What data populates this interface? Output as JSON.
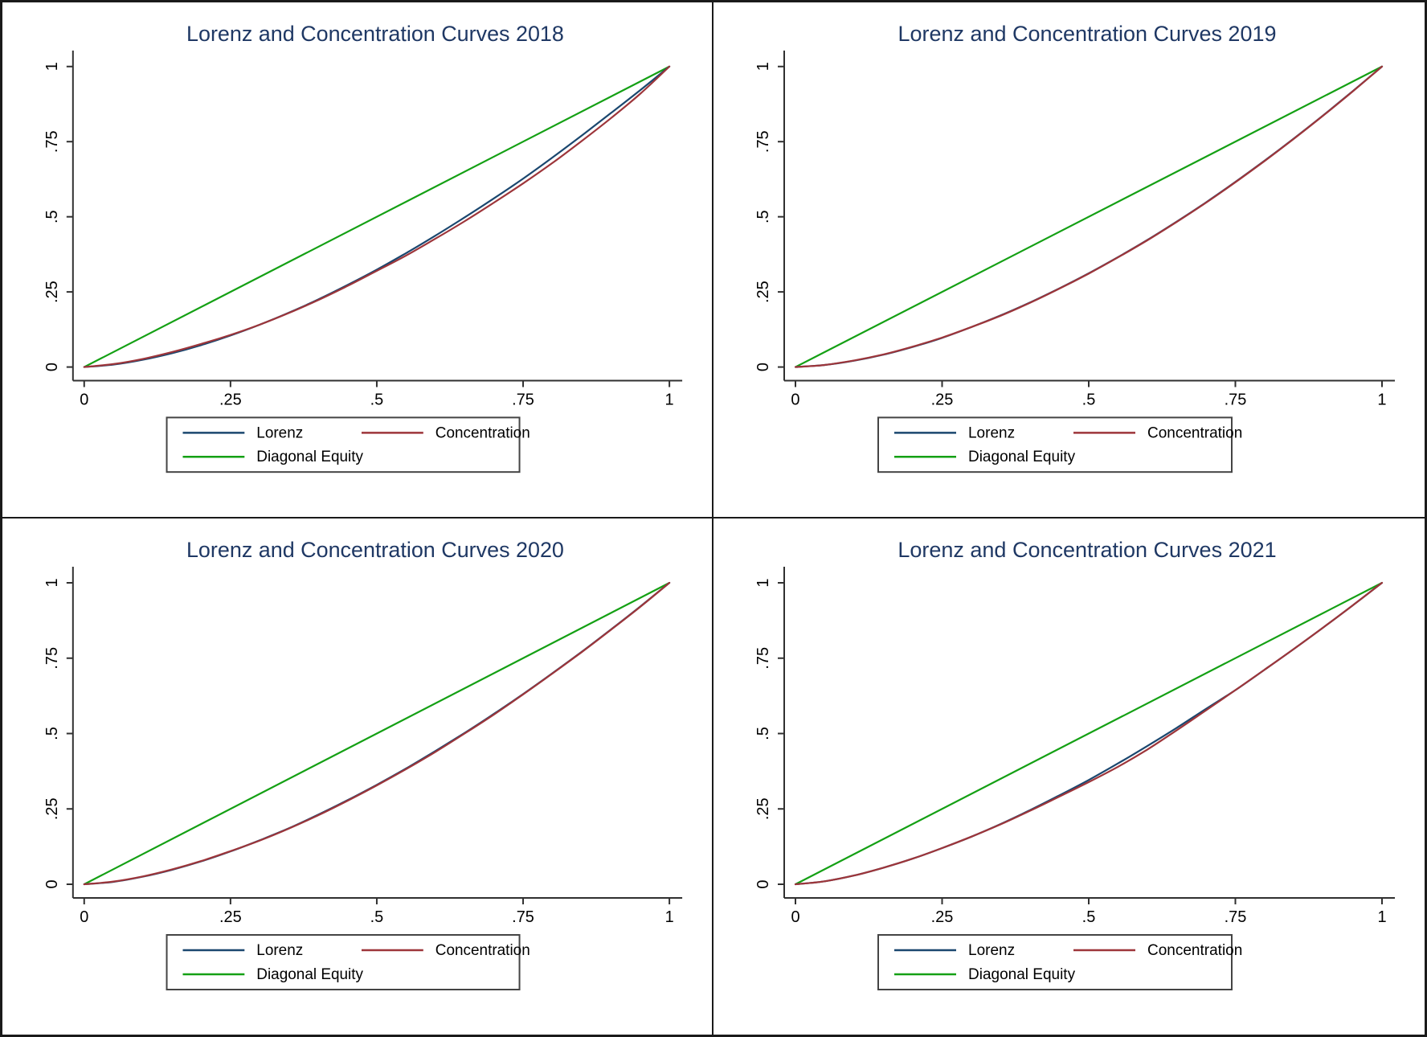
{
  "figure": {
    "background": "#ffffff",
    "border_color": "#1a1a1a",
    "axis_color": "#303030",
    "tick_label_color": "#000000",
    "title_color": "#1f3864"
  },
  "legend": {
    "position": "below-plot, boxed, two columns",
    "entries": [
      {
        "label": "Lorenz",
        "color": "#1a476f"
      },
      {
        "label": "Concentration",
        "color": "#9d353a"
      },
      {
        "label": "Diagonal Equity",
        "color": "#14a014"
      }
    ]
  },
  "chart_data": [
    {
      "type": "line",
      "title": "Lorenz and Concentration Curves 2018",
      "xlabel": "",
      "ylabel": "",
      "xlim": [
        0,
        1
      ],
      "ylim": [
        0,
        1
      ],
      "grid": false,
      "x_ticks": [
        0,
        0.25,
        0.5,
        0.75,
        1
      ],
      "y_ticks": [
        0,
        0.25,
        0.5,
        0.75,
        1
      ],
      "x_tick_labels": [
        "0",
        ".25",
        ".5",
        ".75",
        "1"
      ],
      "y_tick_labels": [
        "0",
        ".25",
        ".5",
        ".75",
        "1"
      ],
      "x": [
        0,
        0.05,
        0.1,
        0.15,
        0.2,
        0.25,
        0.3,
        0.35,
        0.4,
        0.45,
        0.5,
        0.55,
        0.6,
        0.65,
        0.7,
        0.75,
        0.8,
        0.85,
        0.9,
        0.95,
        1
      ],
      "series": [
        {
          "name": "Diagonal Equity",
          "color": "#14a014",
          "x": [
            0,
            1
          ],
          "y": [
            0,
            1
          ]
        },
        {
          "name": "Lorenz",
          "color": "#1a476f",
          "y": [
            0,
            0.008,
            0.024,
            0.046,
            0.073,
            0.105,
            0.141,
            0.181,
            0.225,
            0.273,
            0.324,
            0.379,
            0.437,
            0.498,
            0.561,
            0.627,
            0.697,
            0.77,
            0.845,
            0.921,
            1
          ]
        },
        {
          "name": "Concentration",
          "color": "#9d353a",
          "y": [
            0,
            0.01,
            0.027,
            0.05,
            0.077,
            0.107,
            0.141,
            0.18,
            0.223,
            0.27,
            0.32,
            0.371,
            0.427,
            0.485,
            0.547,
            0.611,
            0.679,
            0.752,
            0.828,
            0.909,
            1
          ]
        }
      ]
    },
    {
      "type": "line",
      "title": "Lorenz and Concentration Curves 2019",
      "xlabel": "",
      "ylabel": "",
      "xlim": [
        0,
        1
      ],
      "ylim": [
        0,
        1
      ],
      "grid": false,
      "x_ticks": [
        0,
        0.25,
        0.5,
        0.75,
        1
      ],
      "y_ticks": [
        0,
        0.25,
        0.5,
        0.75,
        1
      ],
      "x_tick_labels": [
        "0",
        ".25",
        ".5",
        ".75",
        "1"
      ],
      "y_tick_labels": [
        "0",
        ".25",
        ".5",
        ".75",
        "1"
      ],
      "x": [
        0,
        0.05,
        0.1,
        0.15,
        0.2,
        0.25,
        0.3,
        0.35,
        0.4,
        0.45,
        0.5,
        0.55,
        0.6,
        0.65,
        0.7,
        0.75,
        0.8,
        0.85,
        0.9,
        0.95,
        1
      ],
      "series": [
        {
          "name": "Diagonal Equity",
          "color": "#14a014",
          "x": [
            0,
            1
          ],
          "y": [
            0,
            1
          ]
        },
        {
          "name": "Lorenz",
          "color": "#1a476f",
          "y": [
            0,
            0.007,
            0.021,
            0.041,
            0.067,
            0.097,
            0.133,
            0.172,
            0.215,
            0.262,
            0.312,
            0.366,
            0.423,
            0.484,
            0.548,
            0.616,
            0.687,
            0.761,
            0.838,
            0.918,
            1
          ]
        },
        {
          "name": "Concentration",
          "color": "#9d353a",
          "y": [
            0,
            0.007,
            0.022,
            0.042,
            0.068,
            0.098,
            0.133,
            0.171,
            0.214,
            0.261,
            0.311,
            0.365,
            0.422,
            0.483,
            0.547,
            0.615,
            0.686,
            0.76,
            0.837,
            0.917,
            1
          ]
        }
      ]
    },
    {
      "type": "line",
      "title": "Lorenz and Concentration Curves 2020",
      "xlabel": "",
      "ylabel": "",
      "xlim": [
        0,
        1
      ],
      "ylim": [
        0,
        1
      ],
      "grid": false,
      "x_ticks": [
        0,
        0.25,
        0.5,
        0.75,
        1
      ],
      "y_ticks": [
        0,
        0.25,
        0.5,
        0.75,
        1
      ],
      "x_tick_labels": [
        "0",
        ".25",
        ".5",
        ".75",
        "1"
      ],
      "y_tick_labels": [
        "0",
        ".25",
        ".5",
        ".75",
        "1"
      ],
      "x": [
        0,
        0.05,
        0.1,
        0.15,
        0.2,
        0.25,
        0.3,
        0.35,
        0.4,
        0.45,
        0.5,
        0.55,
        0.6,
        0.65,
        0.7,
        0.75,
        0.8,
        0.85,
        0.9,
        0.95,
        1
      ],
      "series": [
        {
          "name": "Diagonal Equity",
          "color": "#14a014",
          "x": [
            0,
            1
          ],
          "y": [
            0,
            1
          ]
        },
        {
          "name": "Lorenz",
          "color": "#1a476f",
          "y": [
            0,
            0.008,
            0.025,
            0.048,
            0.076,
            0.109,
            0.146,
            0.186,
            0.231,
            0.279,
            0.33,
            0.384,
            0.442,
            0.502,
            0.565,
            0.631,
            0.7,
            0.771,
            0.845,
            0.921,
            1
          ]
        },
        {
          "name": "Concentration",
          "color": "#9d353a",
          "y": [
            0,
            0.009,
            0.026,
            0.049,
            0.077,
            0.11,
            0.145,
            0.185,
            0.229,
            0.277,
            0.328,
            0.382,
            0.439,
            0.5,
            0.563,
            0.63,
            0.699,
            0.77,
            0.844,
            0.92,
            1
          ]
        }
      ]
    },
    {
      "type": "line",
      "title": "Lorenz and Concentration Curves 2021",
      "xlabel": "",
      "ylabel": "",
      "xlim": [
        0,
        1
      ],
      "ylim": [
        0,
        1
      ],
      "grid": false,
      "x_ticks": [
        0,
        0.25,
        0.5,
        0.75,
        1
      ],
      "y_ticks": [
        0,
        0.25,
        0.5,
        0.75,
        1
      ],
      "x_tick_labels": [
        "0",
        ".25",
        ".5",
        ".75",
        "1"
      ],
      "y_tick_labels": [
        "0",
        ".25",
        ".5",
        ".75",
        "1"
      ],
      "x": [
        0,
        0.05,
        0.1,
        0.15,
        0.2,
        0.25,
        0.3,
        0.35,
        0.4,
        0.45,
        0.5,
        0.55,
        0.6,
        0.65,
        0.7,
        0.75,
        0.8,
        0.85,
        0.9,
        0.95,
        1
      ],
      "series": [
        {
          "name": "Diagonal Equity",
          "color": "#14a014",
          "x": [
            0,
            1
          ],
          "y": [
            0,
            1
          ]
        },
        {
          "name": "Lorenz",
          "color": "#1a476f",
          "y": [
            0,
            0.01,
            0.029,
            0.055,
            0.085,
            0.12,
            0.158,
            0.2,
            0.246,
            0.295,
            0.346,
            0.401,
            0.459,
            0.519,
            0.582,
            0.644,
            0.712,
            0.781,
            0.852,
            0.925,
            1
          ]
        },
        {
          "name": "Concentration",
          "color": "#9d353a",
          "y": [
            0,
            0.01,
            0.029,
            0.055,
            0.085,
            0.12,
            0.158,
            0.199,
            0.244,
            0.291,
            0.339,
            0.39,
            0.447,
            0.511,
            0.577,
            0.644,
            0.712,
            0.781,
            0.852,
            0.925,
            1
          ]
        }
      ]
    }
  ]
}
